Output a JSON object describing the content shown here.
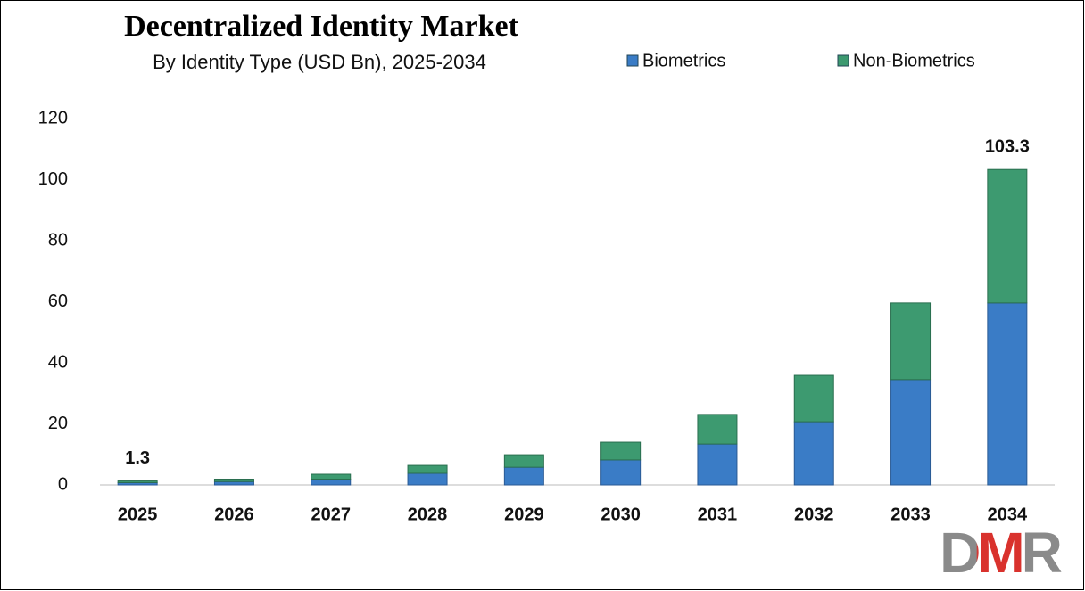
{
  "chart_data": {
    "type": "stacked_bar",
    "title": "Decentralized Identity Market",
    "subtitle": "By Identity Type (USD Bn), 2025-2034",
    "categories": [
      "2025",
      "2026",
      "2027",
      "2028",
      "2029",
      "2030",
      "2031",
      "2032",
      "2033",
      "2034"
    ],
    "series": [
      {
        "name": "Biometrics",
        "color": "#3a7cc6",
        "values": [
          0.75,
          1.1,
          1.9,
          3.8,
          5.8,
          8.2,
          13.4,
          20.7,
          34.5,
          59.6
        ]
      },
      {
        "name": "Non-Biometrics",
        "color": "#3d9a70",
        "values": [
          0.55,
          0.8,
          1.6,
          2.6,
          4.1,
          5.8,
          9.7,
          15.2,
          25.1,
          43.7
        ]
      }
    ],
    "total_labels": [
      1.3,
      null,
      null,
      null,
      null,
      null,
      null,
      null,
      null,
      103.3
    ],
    "ylim": [
      0,
      120
    ],
    "yticks": [
      0,
      20,
      40,
      60,
      80,
      100,
      120
    ],
    "grid": false,
    "legend": "top",
    "logo": "DMR"
  }
}
